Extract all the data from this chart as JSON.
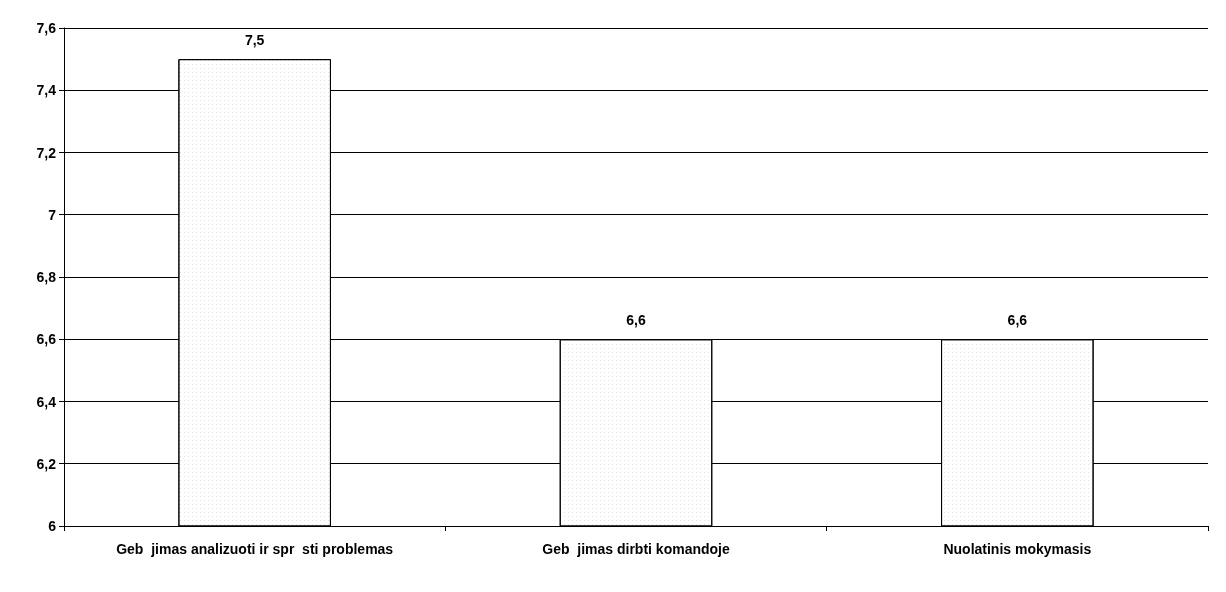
{
  "chart_data": {
    "type": "bar",
    "categories": [
      "Geb  jimas analizuoti ir spr  sti problemas",
      "Geb  jimas dirbti komandoje",
      "Nuolatinis mokymasis"
    ],
    "values": [
      7.5,
      6.6,
      6.6
    ],
    "value_labels": [
      "7,5",
      "6,6",
      "6,6"
    ],
    "color": "#ffffff",
    "ylim": [
      6,
      7.6
    ],
    "yticks": [
      6,
      {
        "value": 6.2,
        "label": "6,2"
      },
      {
        "value": 6.4,
        "label": "6,4"
      },
      {
        "value": 6.6,
        "label": "6,6"
      },
      {
        "value": 6.8,
        "label": "6,8"
      },
      7,
      {
        "value": 7.2,
        "label": "7,2"
      },
      {
        "value": 7.4,
        "label": "7,4"
      },
      {
        "value": 7.6,
        "label": "7,6"
      }
    ],
    "grid": "y"
  }
}
